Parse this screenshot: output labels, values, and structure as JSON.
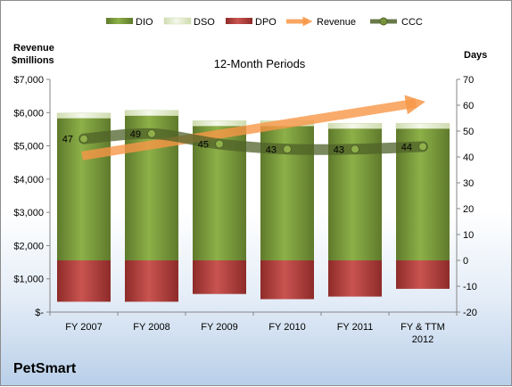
{
  "company": "PetSmart",
  "chart_data": {
    "type": "bar",
    "title": "12-Month Periods",
    "y_left_label_lines": [
      "Revenue",
      "$millions"
    ],
    "y_right_label": "Days",
    "categories": [
      [
        "FY 2007"
      ],
      [
        "FY 2008"
      ],
      [
        "FY 2009"
      ],
      [
        "FY 2010"
      ],
      [
        "FY 2011"
      ],
      [
        "FY & TTM",
        "2012"
      ]
    ],
    "left_axis": {
      "min": 0,
      "max": 7000,
      "step": 1000,
      "tick_labels": [
        "$-",
        "$1,000",
        "$2,000",
        "$3,000",
        "$4,000",
        "$5,000",
        "$6,000",
        "$7,000"
      ]
    },
    "right_axis": {
      "min": -20,
      "max": 70,
      "step": 10,
      "tick_labels": [
        "-20",
        "-10",
        "0",
        "10",
        "20",
        "30",
        "40",
        "50",
        "60",
        "70"
      ]
    },
    "legend": {
      "position": "top",
      "items": [
        {
          "name": "DIO",
          "color": "#77933c"
        },
        {
          "name": "DSO",
          "color": "#ebf1de"
        },
        {
          "name": "DPO",
          "color": "#c0504d"
        },
        {
          "name": "Revenue",
          "color": "#f79646"
        },
        {
          "name": "CCC",
          "color": "#4f6228"
        }
      ]
    },
    "series": [
      {
        "name": "DIO",
        "axis": "right",
        "values": [
          55,
          56,
          52,
          52,
          51,
          51
        ]
      },
      {
        "name": "DSO",
        "axis": "right",
        "values": [
          2,
          2,
          2,
          2,
          2,
          2
        ]
      },
      {
        "name": "DPO",
        "axis": "right",
        "values": [
          -16,
          -16,
          -13,
          -15,
          -14,
          -11
        ]
      },
      {
        "name": "CCC",
        "axis": "right",
        "values": [
          47,
          49,
          45,
          43,
          43,
          44
        ]
      },
      {
        "name": "Revenue",
        "axis": "left",
        "values": [
          4700,
          5000,
          5350,
          5700,
          6100,
          6350
        ]
      }
    ],
    "ccc_labels": [
      "47",
      "49",
      "45",
      "43",
      "43",
      "44"
    ]
  }
}
